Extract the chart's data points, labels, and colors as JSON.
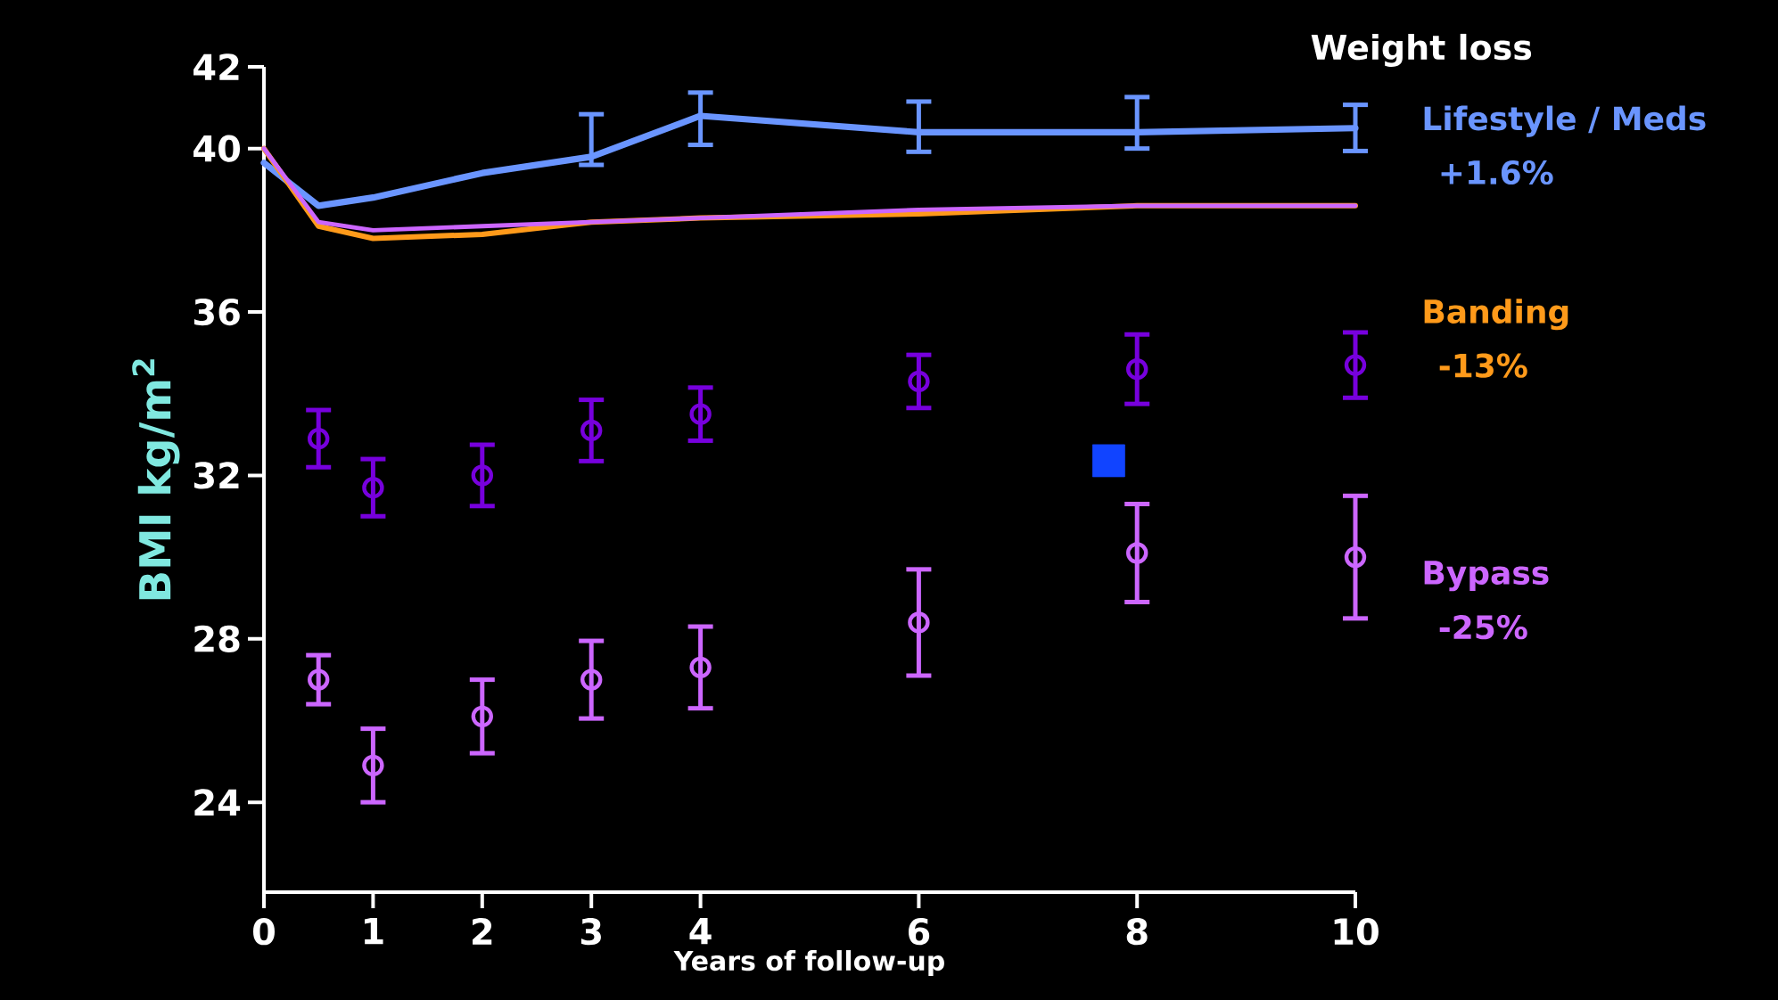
{
  "chart_data": {
    "type": "line",
    "legend_title": "Weight loss",
    "xlabel": "Years of follow-up",
    "ylabel": "BMI kg/m$^{2}$",
    "legend": "right",
    "xlim": [
      0,
      10
    ],
    "xticks": [
      0,
      1,
      2,
      3,
      4,
      6,
      8,
      10
    ],
    "ylim": [
      21.8,
      42
    ],
    "yticks": [
      24,
      28,
      32,
      36,
      40,
      42
    ],
    "x": [
      0,
      0.5,
      1,
      2,
      3,
      4,
      6,
      8,
      10
    ],
    "annotations": [
      "+1.6%",
      "-13%",
      "-25%"
    ],
    "series": [
      {
        "name": "Lifestyle / Meds",
        "color": "#6a95ff",
        "values": [
          39.65,
          38.6,
          38.8,
          39.4,
          39.8,
          40.8,
          40.4,
          40.4,
          40.5
        ],
        "errors": [
          null,
          null,
          null,
          null,
          [
            39.6,
            40.84
          ],
          [
            40.09,
            41.37
          ],
          [
            39.92,
            41.15
          ],
          [
            40.0,
            41.26
          ],
          [
            39.94,
            41.07
          ]
        ]
      },
      {
        "name": "Banding",
        "color": "#ff9a1a",
        "values": [
          40,
          38.1,
          37.8,
          37.9,
          38.2,
          38.3,
          38.4,
          38.6,
          38.6
        ]
      },
      {
        "name": "Bypass",
        "color": "#cc66ff",
        "values": [
          40,
          38.2,
          38.0,
          38.1,
          38.2,
          38.3,
          38.5,
          38.6,
          38.6
        ]
      },
      {
        "type": "scatter",
        "marker": "circle",
        "color": "#7700dd",
        "x": [
          0.5,
          1,
          2,
          3,
          4,
          6,
          8,
          10
        ],
        "values": [
          32.9,
          31.7,
          32.0,
          33.1,
          33.5,
          34.3,
          34.6,
          34.7
        ],
        "errors": [
          0.7,
          0.7,
          0.75,
          0.75,
          0.65,
          0.65,
          0.85,
          0.8
        ]
      },
      {
        "type": "scatter",
        "marker": "circle",
        "color": "#cc66ff",
        "x": [
          0.5,
          1,
          2,
          3,
          4,
          6,
          8,
          10
        ],
        "values": [
          27.0,
          24.9,
          26.1,
          27.0,
          27.3,
          28.4,
          30.1,
          30.0
        ],
        "errors": [
          0.6,
          0.9,
          0.9,
          0.95,
          1.0,
          1.3,
          1.2,
          1.5
        ]
      },
      {
        "type": "scatter",
        "marker": "square",
        "color": "#1144ff",
        "x": [
          7.74
        ],
        "values": [
          32.36
        ]
      }
    ]
  }
}
